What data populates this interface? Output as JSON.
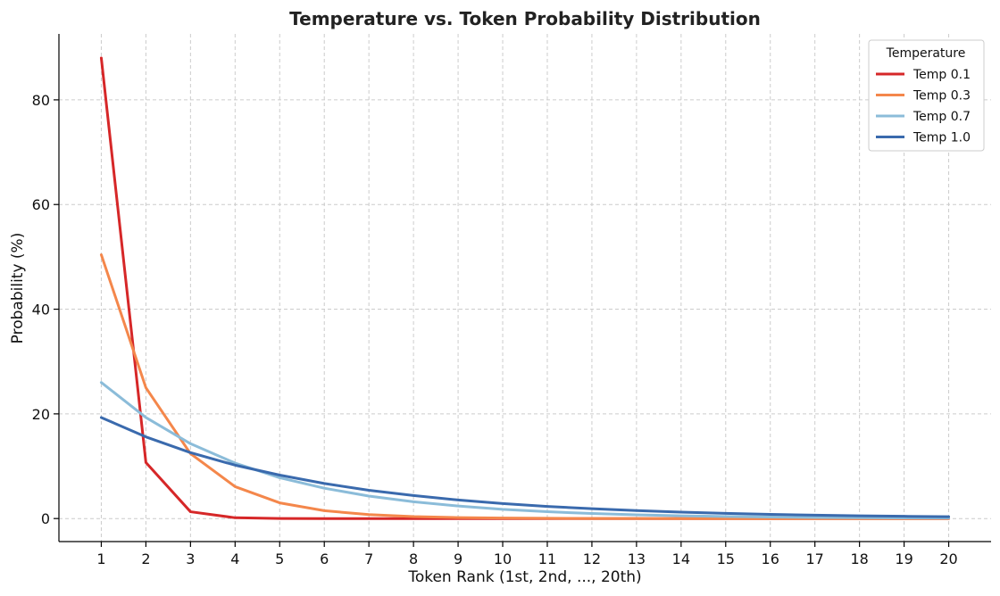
{
  "chart_data": {
    "type": "line",
    "title": "Temperature vs. Token Probability Distribution",
    "xlabel": "Token Rank (1st, 2nd, ..., 20th)",
    "ylabel": "Probability (%)",
    "x": [
      1,
      2,
      3,
      4,
      5,
      6,
      7,
      8,
      9,
      10,
      11,
      12,
      13,
      14,
      15,
      16,
      17,
      18,
      19,
      20
    ],
    "xlim": [
      0.05,
      20.95
    ],
    "ylim": [
      -4.4,
      92.6
    ],
    "yticks": [
      0,
      20,
      40,
      60,
      80
    ],
    "grid": true,
    "legend": {
      "title": "Temperature",
      "placement": "top-right"
    },
    "series": [
      {
        "name": "Temp 0.1",
        "color": "#d62728",
        "values": [
          88.0,
          10.7,
          1.3,
          0.15,
          0.02,
          0.0,
          0.0,
          0.0,
          0.0,
          0.0,
          0.0,
          0.0,
          0.0,
          0.0,
          0.0,
          0.0,
          0.0,
          0.0,
          0.0,
          0.0
        ]
      },
      {
        "name": "Temp 0.3",
        "color": "#f4874b",
        "values": [
          50.4,
          25.0,
          12.4,
          6.1,
          3.0,
          1.5,
          0.75,
          0.37,
          0.18,
          0.09,
          0.05,
          0.02,
          0.01,
          0.0,
          0.0,
          0.0,
          0.0,
          0.0,
          0.0,
          0.0
        ]
      },
      {
        "name": "Temp 0.7",
        "color": "#8bbcd9",
        "values": [
          26.0,
          19.3,
          14.3,
          10.6,
          7.8,
          5.8,
          4.3,
          3.2,
          2.4,
          1.75,
          1.3,
          0.96,
          0.71,
          0.53,
          0.39,
          0.29,
          0.21,
          0.16,
          0.12,
          0.09
        ]
      },
      {
        "name": "Temp 1.0",
        "color": "#3a6aad",
        "values": [
          19.3,
          15.6,
          12.6,
          10.2,
          8.3,
          6.7,
          5.4,
          4.4,
          3.55,
          2.87,
          2.32,
          1.88,
          1.52,
          1.23,
          0.99,
          0.8,
          0.65,
          0.53,
          0.43,
          0.35
        ]
      }
    ]
  }
}
